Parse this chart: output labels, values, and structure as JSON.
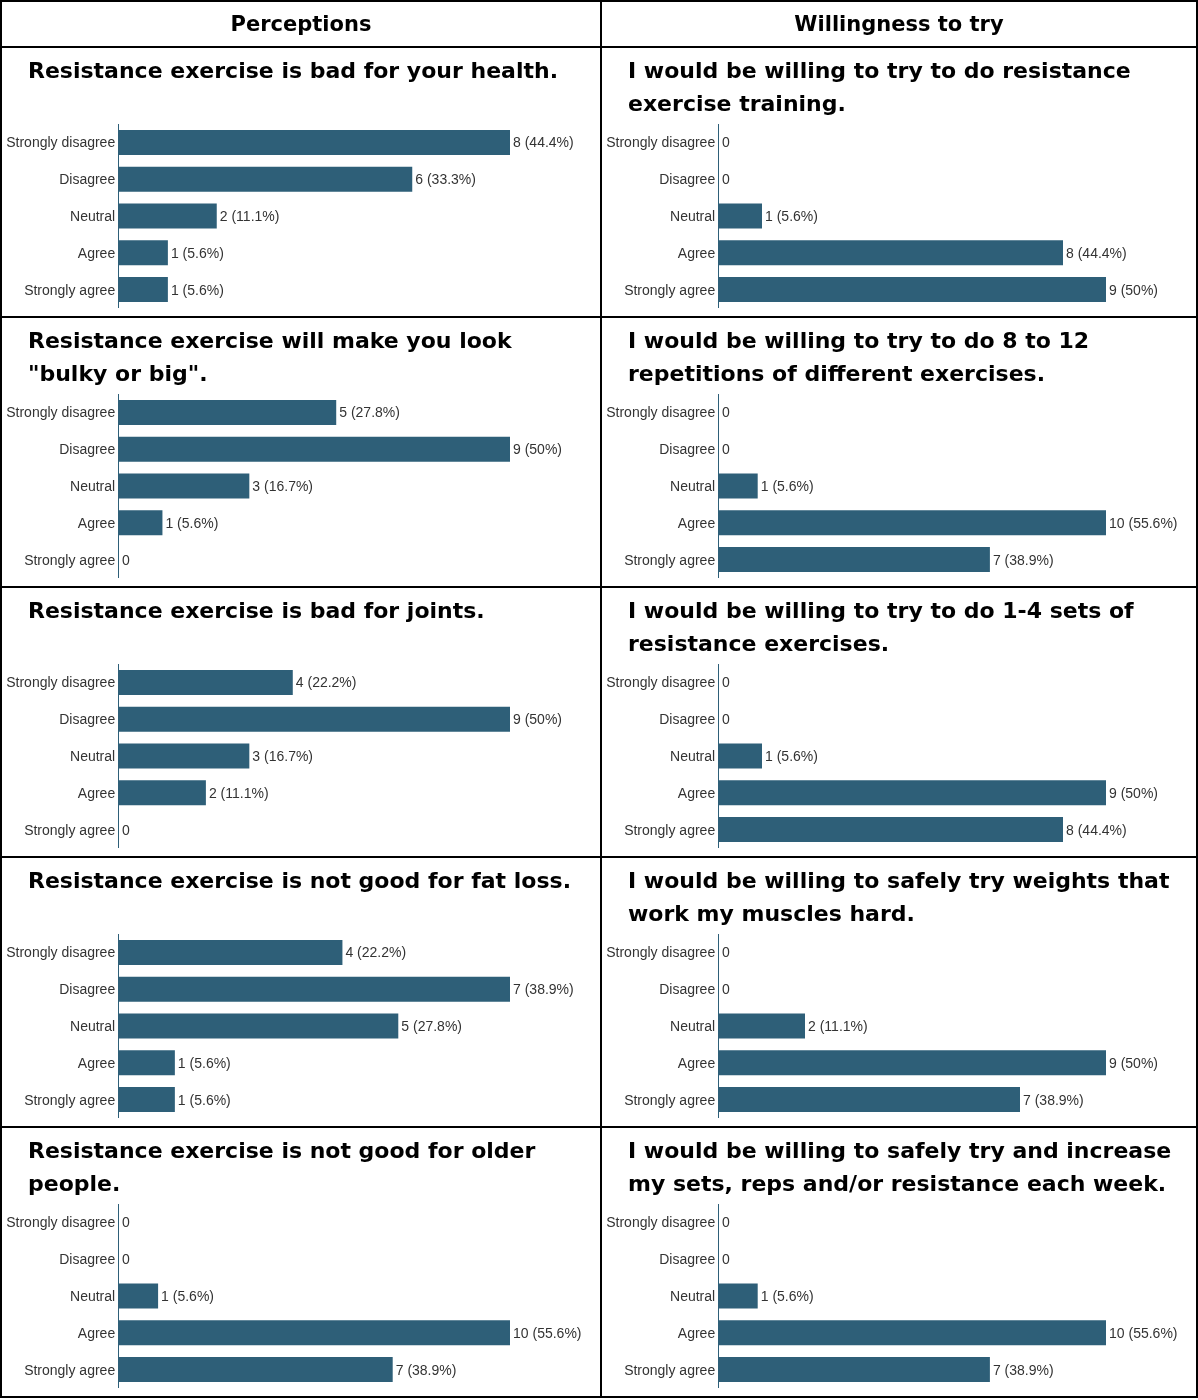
{
  "chart_data": [
    {
      "type": "other",
      "title": "Perceptions"
    },
    {
      "type": "other",
      "title": "Willingness to try"
    },
    {
      "type": "bar",
      "orientation": "horizontal",
      "title": "Resistance exercise is bad for your health.",
      "categories": [
        "Strongly disagree",
        "Disagree",
        "Neutral",
        "Agree",
        "Strongly agree"
      ],
      "values": [
        8,
        6,
        2,
        1,
        1
      ],
      "value_labels": [
        "8 (44.4%)",
        "6 (33.3%)",
        "2 (11.1%)",
        "1 (5.6%)",
        "1 (5.6%)"
      ],
      "color": "#2e5f78"
    },
    {
      "type": "bar",
      "orientation": "horizontal",
      "title": "I would be willing to try to do resistance exercise training.",
      "categories": [
        "Strongly disagree",
        "Disagree",
        "Neutral",
        "Agree",
        "Strongly agree"
      ],
      "values": [
        0,
        0,
        1,
        8,
        9
      ],
      "value_labels": [
        "0",
        "0",
        "1 (5.6%)",
        "8 (44.4%)",
        "9 (50%)"
      ],
      "color": "#2e5f78"
    },
    {
      "type": "bar",
      "orientation": "horizontal",
      "title": "Resistance exercise will make you look \"bulky or big\".",
      "categories": [
        "Strongly disagree",
        "Disagree",
        "Neutral",
        "Agree",
        "Strongly agree"
      ],
      "values": [
        5,
        9,
        3,
        1,
        0
      ],
      "value_labels": [
        "5 (27.8%)",
        "9 (50%)",
        "3 (16.7%)",
        "1 (5.6%)",
        "0"
      ],
      "color": "#2e5f78"
    },
    {
      "type": "bar",
      "orientation": "horizontal",
      "title": "I would be willing to try to do 8 to 12 repetitions of different exercises.",
      "categories": [
        "Strongly disagree",
        "Disagree",
        "Neutral",
        "Agree",
        "Strongly agree"
      ],
      "values": [
        0,
        0,
        1,
        10,
        7
      ],
      "value_labels": [
        "0",
        "0",
        "1 (5.6%)",
        "10 (55.6%)",
        "7 (38.9%)"
      ],
      "color": "#2e5f78"
    },
    {
      "type": "bar",
      "orientation": "horizontal",
      "title": "Resistance exercise is bad for joints.",
      "categories": [
        "Strongly disagree",
        "Disagree",
        "Neutral",
        "Agree",
        "Strongly agree"
      ],
      "values": [
        4,
        9,
        3,
        2,
        0
      ],
      "value_labels": [
        "4 (22.2%)",
        "9 (50%)",
        "3 (16.7%)",
        "2 (11.1%)",
        "0"
      ],
      "color": "#2e5f78"
    },
    {
      "type": "bar",
      "orientation": "horizontal",
      "title": "I would be willing to try to do 1-4 sets of resistance exercises.",
      "categories": [
        "Strongly disagree",
        "Disagree",
        "Neutral",
        "Agree",
        "Strongly agree"
      ],
      "values": [
        0,
        0,
        1,
        9,
        8
      ],
      "value_labels": [
        "0",
        "0",
        "1 (5.6%)",
        "9 (50%)",
        "8 (44.4%)"
      ],
      "color": "#2e5f78"
    },
    {
      "type": "bar",
      "orientation": "horizontal",
      "title": "Resistance exercise is not good for fat loss.",
      "categories": [
        "Strongly disagree",
        "Disagree",
        "Neutral",
        "Agree",
        "Strongly agree"
      ],
      "values": [
        4,
        7,
        5,
        1,
        1
      ],
      "value_labels": [
        "4 (22.2%)",
        "7 (38.9%)",
        "5 (27.8%)",
        "1 (5.6%)",
        "1 (5.6%)"
      ],
      "color": "#2e5f78"
    },
    {
      "type": "bar",
      "orientation": "horizontal",
      "title": "I would be willing to safely try weights that work my muscles hard.",
      "categories": [
        "Strongly disagree",
        "Disagree",
        "Neutral",
        "Agree",
        "Strongly agree"
      ],
      "values": [
        0,
        0,
        2,
        9,
        7
      ],
      "value_labels": [
        "0",
        "0",
        "2 (11.1%)",
        "9 (50%)",
        "7 (38.9%)"
      ],
      "color": "#2e5f78"
    },
    {
      "type": "bar",
      "orientation": "horizontal",
      "title": "Resistance exercise is not good for older people.",
      "categories": [
        "Strongly disagree",
        "Disagree",
        "Neutral",
        "Agree",
        "Strongly agree"
      ],
      "values": [
        0,
        0,
        1,
        10,
        7
      ],
      "value_labels": [
        "0",
        "0",
        "1 (5.6%)",
        "10 (55.6%)",
        "7 (38.9%)"
      ],
      "color": "#2e5f78"
    },
    {
      "type": "bar",
      "orientation": "horizontal",
      "title": "I would be willing to safely try and increase my sets, reps and/or resistance each week.",
      "categories": [
        "Strongly disagree",
        "Disagree",
        "Neutral",
        "Agree",
        "Strongly agree"
      ],
      "values": [
        0,
        0,
        1,
        10,
        7
      ],
      "value_labels": [
        "0",
        "0",
        "1 (5.6%)",
        "10 (55.6%)",
        "7 (38.9%)"
      ],
      "color": "#2e5f78"
    }
  ]
}
